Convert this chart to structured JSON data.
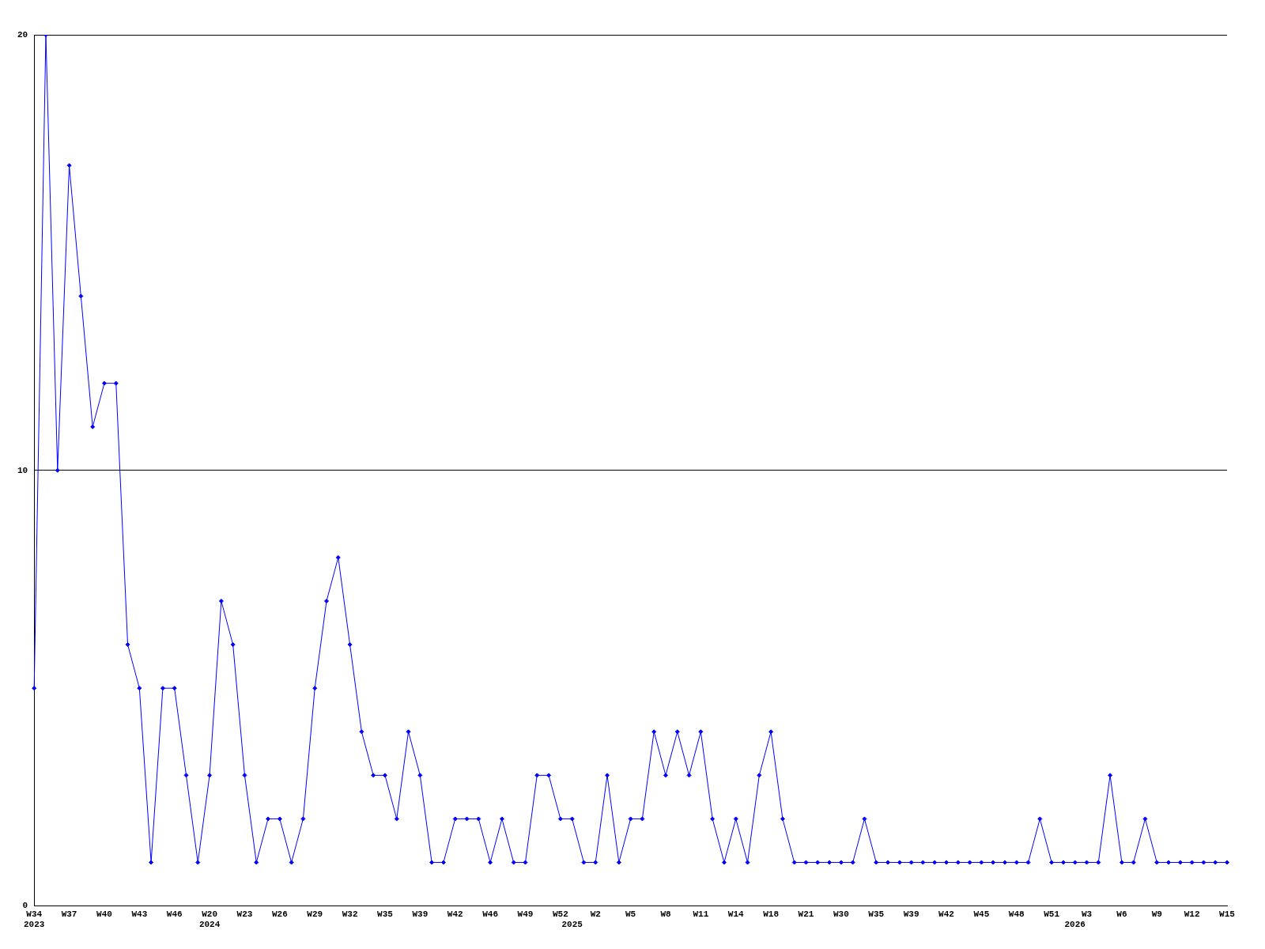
{
  "chart_data": {
    "type": "line",
    "categories": [
      "W34\n2023",
      null,
      null,
      "W37",
      null,
      null,
      "W40",
      null,
      null,
      "W43",
      null,
      null,
      "W46",
      null,
      null,
      "W20\n2024",
      null,
      null,
      "W23",
      null,
      null,
      "W26",
      null,
      null,
      "W29",
      null,
      null,
      "W32",
      null,
      null,
      "W35",
      null,
      null,
      "W39",
      null,
      null,
      "W42",
      null,
      null,
      "W46",
      null,
      null,
      "W49",
      null,
      null,
      "W52",
      "\n2025",
      null,
      "W2",
      null,
      null,
      "W5",
      null,
      null,
      "W8",
      null,
      null,
      "W11",
      null,
      null,
      "W14",
      null,
      null,
      "W18",
      null,
      null,
      "W21",
      null,
      null,
      "W30",
      null,
      null,
      "W35",
      null,
      null,
      "W39",
      null,
      null,
      "W42",
      null,
      null,
      "W45",
      null,
      null,
      "W48",
      null,
      null,
      "W51",
      null,
      "\n2026",
      "W3",
      null,
      null,
      "W6",
      null,
      null,
      "W9",
      null,
      null,
      "W12",
      null,
      null,
      "W15"
    ],
    "series": [
      {
        "color": "#0000ff",
        "values": [
          5,
          20,
          10,
          17,
          14,
          11,
          12,
          12,
          6,
          5,
          1,
          5,
          5,
          3,
          1,
          3,
          7,
          6,
          3,
          1,
          2,
          2,
          1,
          2,
          5,
          7,
          8,
          6,
          4,
          3,
          3,
          2,
          4,
          3,
          1,
          1,
          2,
          2,
          2,
          1,
          2,
          1,
          1,
          3,
          3,
          2,
          2,
          1,
          1,
          3,
          1,
          2,
          2,
          4,
          3,
          4,
          3,
          4,
          2,
          1,
          2,
          1,
          3,
          4,
          2,
          1,
          1,
          1,
          1,
          1,
          1,
          2,
          1,
          1,
          1,
          1,
          1,
          1,
          1,
          1,
          1,
          1,
          1,
          1,
          1,
          1,
          2,
          1,
          1,
          1,
          1,
          1,
          3,
          1,
          1,
          2,
          1,
          1,
          1,
          1,
          1,
          1,
          1
        ]
      }
    ],
    "ylim": [
      0,
      20
    ],
    "yticks": [
      0,
      10,
      20
    ],
    "grid": "y",
    "legend": false,
    "marker": "diamond",
    "line_style": "solid"
  }
}
